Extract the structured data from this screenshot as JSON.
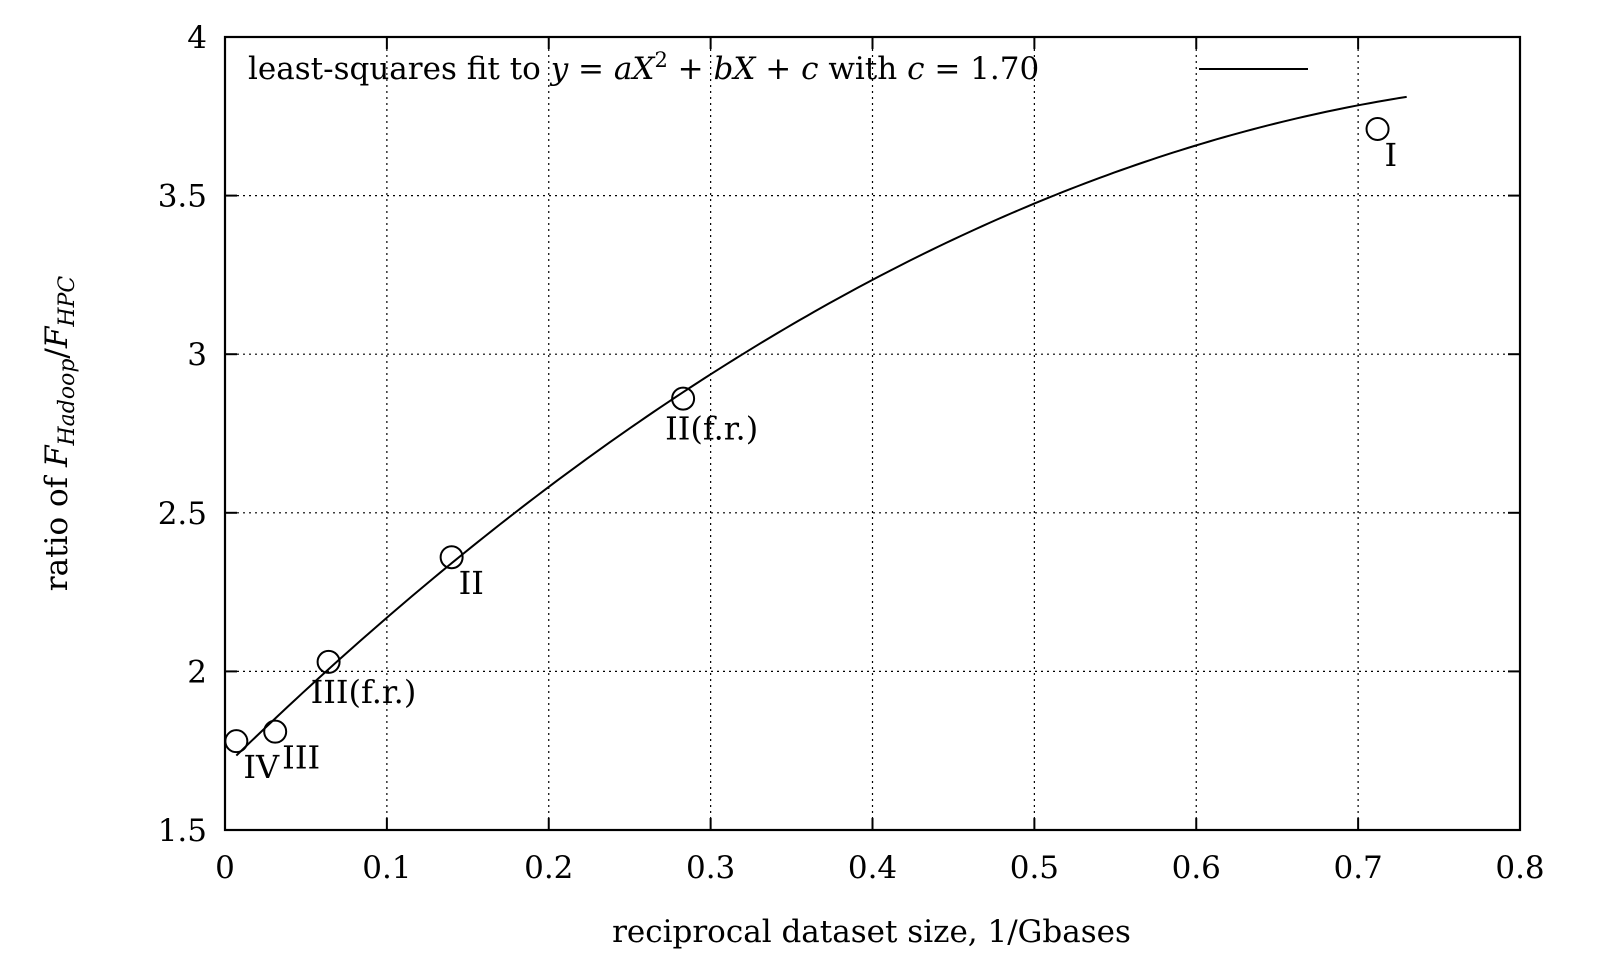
{
  "chart_data": {
    "type": "scatter",
    "xlabel": "reciprocal dataset size, 1/Gbases",
    "ylabel": {
      "prefix": "ratio of ",
      "num_var": "F",
      "num_sub": "Hadoop",
      "slash": "/",
      "den_var": "F",
      "den_sub": "HPC"
    },
    "xlim": [
      0,
      0.8
    ],
    "ylim": [
      1.5,
      4
    ],
    "x_ticks": [
      0,
      0.1,
      0.2,
      0.3,
      0.4,
      0.5,
      0.6,
      0.7,
      0.8
    ],
    "x_tick_labels": [
      "0",
      "0.1",
      "0.2",
      "0.3",
      "0.4",
      "0.5",
      "0.6",
      "0.7",
      "0.8"
    ],
    "y_ticks": [
      1.5,
      2,
      2.5,
      3,
      3.5,
      4
    ],
    "y_tick_labels": [
      "1.5",
      "2",
      "2.5",
      "3",
      "3.5",
      "4"
    ],
    "grid": true,
    "legend": {
      "placement": "top-left",
      "parts": [
        {
          "t": "least-squares fit to ",
          "i": false
        },
        {
          "t": "y",
          "i": true
        },
        {
          "t": " = ",
          "i": false
        },
        {
          "t": "aX",
          "i": true
        },
        {
          "t": "2",
          "sup": true
        },
        {
          "t": " + ",
          "i": false
        },
        {
          "t": "bX",
          "i": true
        },
        {
          "t": " + ",
          "i": false
        },
        {
          "t": "c",
          "i": true
        },
        {
          "t": " with ",
          "i": false
        },
        {
          "t": "c",
          "i": true
        },
        {
          "t": " = 1.70",
          "i": false
        }
      ]
    },
    "points": [
      {
        "label": "IV",
        "x": 0.007,
        "y": 1.78,
        "label_pos": "below-right"
      },
      {
        "label": "III",
        "x": 0.031,
        "y": 1.81,
        "label_pos": "below-right"
      },
      {
        "label": "III(f.r.)",
        "x": 0.064,
        "y": 2.03,
        "label_pos": "below"
      },
      {
        "label": "II",
        "x": 0.14,
        "y": 2.36,
        "label_pos": "below-right"
      },
      {
        "label": "II(f.r.)",
        "x": 0.283,
        "y": 2.86,
        "label_pos": "below"
      },
      {
        "label": "I",
        "x": 0.712,
        "y": 3.71,
        "label_pos": "below-right"
      }
    ],
    "fit": {
      "form": "quadratic",
      "a": -2.86,
      "b": 4.98,
      "c": 1.7,
      "x_range": [
        0.007,
        0.73
      ]
    }
  }
}
